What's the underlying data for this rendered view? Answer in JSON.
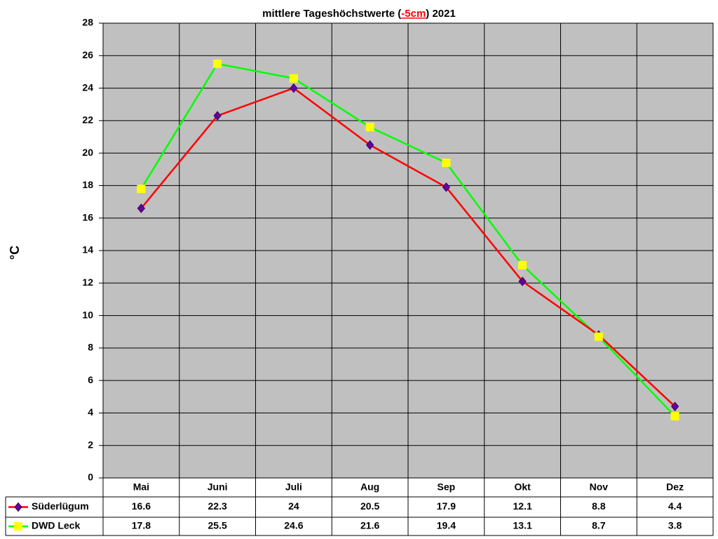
{
  "chart_data": {
    "type": "line",
    "title": [
      "mittlere Tageshöchstwerte (",
      "-5cm",
      ") 2021"
    ],
    "y_label": "°C",
    "categories": [
      "Mai",
      "Juni",
      "Juli",
      "Aug",
      "Sep",
      "Okt",
      "Nov",
      "Dez"
    ],
    "series": [
      {
        "name": "Süderlügum",
        "color": "#ff0000",
        "marker": "diamond",
        "marker_color": "#660099",
        "values": [
          16.6,
          22.3,
          24,
          20.5,
          17.9,
          12.1,
          8.8,
          4.4
        ]
      },
      {
        "name": "DWD Leck",
        "color": "#00ff00",
        "marker": "square",
        "marker_color": "#ffff00",
        "values": [
          17.8,
          25.5,
          24.6,
          21.6,
          19.4,
          13.1,
          8.7,
          3.8
        ]
      }
    ],
    "ylim": [
      0,
      28
    ],
    "yticks": [
      0,
      2,
      4,
      6,
      8,
      10,
      12,
      14,
      16,
      18,
      20,
      22,
      24,
      26,
      28
    ],
    "grid": true,
    "data_table": true
  }
}
